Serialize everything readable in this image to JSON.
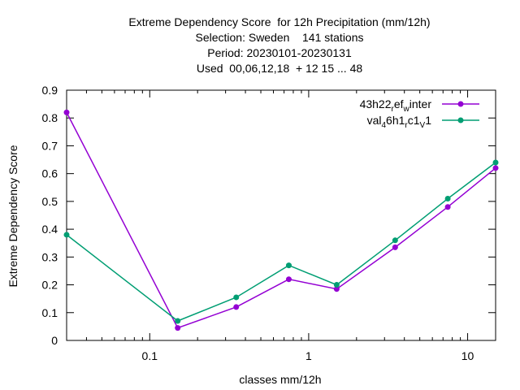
{
  "chart_data": {
    "type": "line",
    "title_lines": [
      "Extreme Dependency Score  for 12h Precipitation (mm/12h)",
      "Selection: Sweden    141 stations",
      "Period: 20230101-20230131",
      "Used  00,06,12,18  + 12 15 ... 48"
    ],
    "xlabel": "classes mm/12h",
    "ylabel": "Extreme Dependency Score",
    "x_scale": "log",
    "xlim": [
      0.03,
      15
    ],
    "ylim": [
      0,
      0.9
    ],
    "x_ticks": [
      {
        "value": 0.1,
        "label": "0.1"
      },
      {
        "value": 1,
        "label": "1"
      },
      {
        "value": 10,
        "label": "10"
      }
    ],
    "y_ticks": [
      {
        "value": 0,
        "label": "0"
      },
      {
        "value": 0.1,
        "label": "0.1"
      },
      {
        "value": 0.2,
        "label": "0.2"
      },
      {
        "value": 0.3,
        "label": "0.3"
      },
      {
        "value": 0.4,
        "label": "0.4"
      },
      {
        "value": 0.5,
        "label": "0.5"
      },
      {
        "value": 0.6,
        "label": "0.6"
      },
      {
        "value": 0.7,
        "label": "0.7"
      },
      {
        "value": 0.8,
        "label": "0.8"
      },
      {
        "value": 0.9,
        "label": "0.9"
      }
    ],
    "grid": false,
    "legend_position": "top-right",
    "series": [
      {
        "name_parts": [
          [
            "43h22",
            0
          ],
          [
            "r",
            -1
          ],
          [
            "ef",
            0
          ],
          [
            "w",
            -1
          ],
          [
            "inter",
            0
          ]
        ],
        "color": "#9400d3",
        "marker": "filled-circle",
        "x": [
          0.03,
          0.15,
          0.35,
          0.75,
          1.5,
          3.5,
          7.5,
          15
        ],
        "y": [
          0.82,
          0.045,
          0.12,
          0.22,
          0.185,
          0.335,
          0.48,
          0.62
        ]
      },
      {
        "name_parts": [
          [
            "val",
            0
          ],
          [
            "4",
            -1
          ],
          [
            "6h1",
            0
          ],
          [
            "r",
            -1
          ],
          [
            "c1",
            0
          ],
          [
            "V",
            -1
          ],
          [
            "1",
            0
          ]
        ],
        "color": "#009e73",
        "marker": "filled-circle",
        "x": [
          0.03,
          0.15,
          0.35,
          0.75,
          1.5,
          3.5,
          7.5,
          15
        ],
        "y": [
          0.38,
          0.07,
          0.155,
          0.27,
          0.2,
          0.36,
          0.51,
          0.64
        ]
      }
    ]
  }
}
